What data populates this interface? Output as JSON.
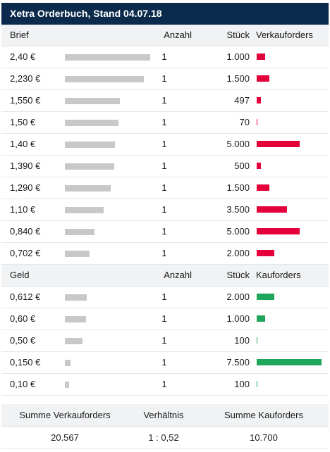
{
  "title": "Xetra Orderbuch, Stand 04.07.18",
  "colors": {
    "header_bg": "#0c2b4c",
    "sell_bar": "#e4003a",
    "buy_bar": "#1fa65a",
    "price_bar": "#c8c8c8"
  },
  "brief": {
    "header": {
      "col_price": "Brief",
      "col_anzahl": "Anzahl",
      "col_stueck": "Stück",
      "col_orders": "Verkauforders"
    },
    "rows": [
      {
        "price": "2,40 €",
        "anzahl": "1",
        "stueck": "1.000",
        "stueck_value": 1000,
        "price_value": 2.4
      },
      {
        "price": "2,230 €",
        "anzahl": "1",
        "stueck": "1.500",
        "stueck_value": 1500,
        "price_value": 2.23
      },
      {
        "price": "1,550 €",
        "anzahl": "1",
        "stueck": "497",
        "stueck_value": 497,
        "price_value": 1.55
      },
      {
        "price": "1,50 €",
        "anzahl": "1",
        "stueck": "70",
        "stueck_value": 70,
        "price_value": 1.5
      },
      {
        "price": "1,40 €",
        "anzahl": "1",
        "stueck": "5.000",
        "stueck_value": 5000,
        "price_value": 1.4
      },
      {
        "price": "1,390 €",
        "anzahl": "1",
        "stueck": "500",
        "stueck_value": 500,
        "price_value": 1.39
      },
      {
        "price": "1,290 €",
        "anzahl": "1",
        "stueck": "1.500",
        "stueck_value": 1500,
        "price_value": 1.29
      },
      {
        "price": "1,10 €",
        "anzahl": "1",
        "stueck": "3.500",
        "stueck_value": 3500,
        "price_value": 1.1
      },
      {
        "price": "0,840 €",
        "anzahl": "1",
        "stueck": "5.000",
        "stueck_value": 5000,
        "price_value": 0.84
      },
      {
        "price": "0,702 €",
        "anzahl": "1",
        "stueck": "2.000",
        "stueck_value": 2000,
        "price_value": 0.702
      }
    ]
  },
  "geld": {
    "header": {
      "col_price": "Geld",
      "col_anzahl": "Anzahl",
      "col_stueck": "Stück",
      "col_orders": "Kauforders"
    },
    "rows": [
      {
        "price": "0,612 €",
        "anzahl": "1",
        "stueck": "2.000",
        "stueck_value": 2000,
        "price_value": 0.612
      },
      {
        "price": "0,60 €",
        "anzahl": "1",
        "stueck": "1.000",
        "stueck_value": 1000,
        "price_value": 0.6
      },
      {
        "price": "0,50 €",
        "anzahl": "1",
        "stueck": "100",
        "stueck_value": 100,
        "price_value": 0.5
      },
      {
        "price": "0,150 €",
        "anzahl": "1",
        "stueck": "7.500",
        "stueck_value": 7500,
        "price_value": 0.15
      },
      {
        "price": "0,10 €",
        "anzahl": "1",
        "stueck": "100",
        "stueck_value": 100,
        "price_value": 0.1
      }
    ]
  },
  "summary": {
    "labels": {
      "sell": "Summe Verkauforders",
      "ratio": "Verhältnis",
      "buy": "Summe Kauforders"
    },
    "values": {
      "sell": "20.567",
      "ratio": "1 : 0,52",
      "buy": "10.700"
    }
  }
}
